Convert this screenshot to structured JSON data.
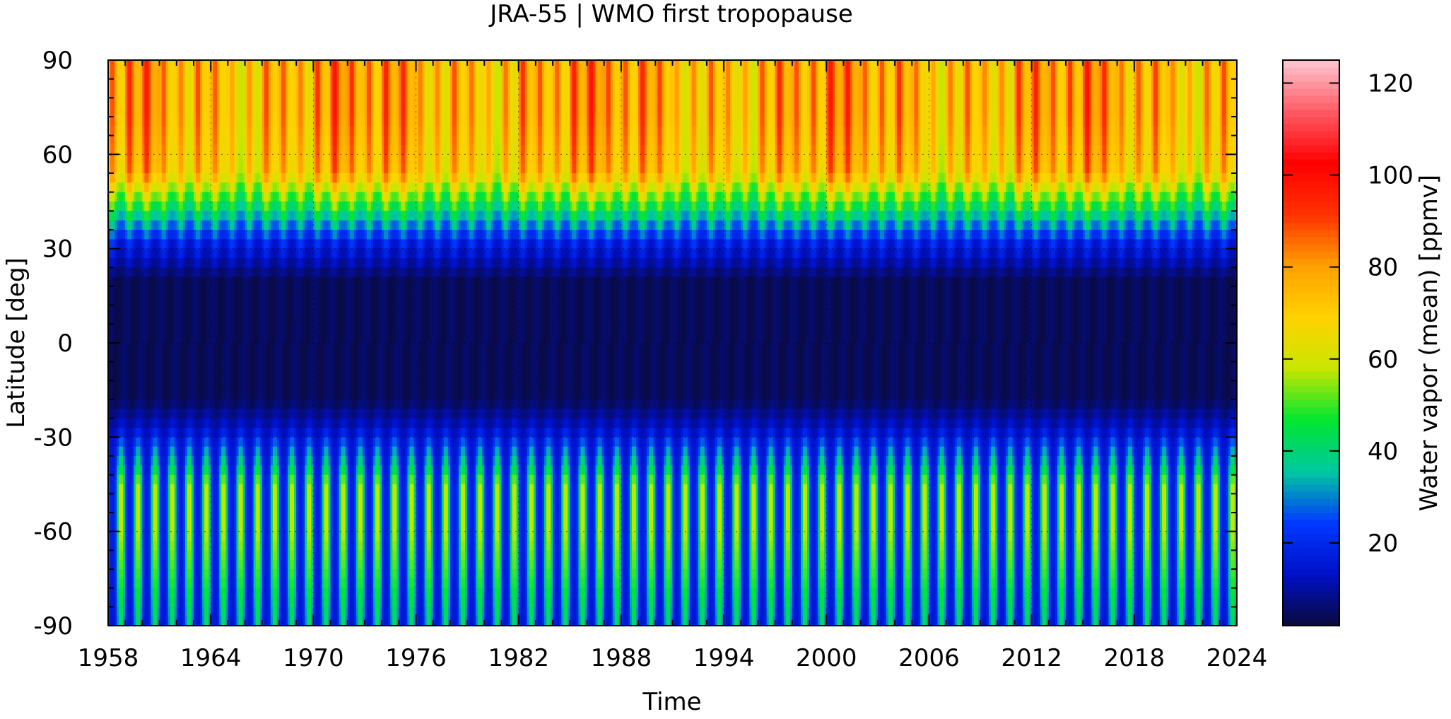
{
  "chart_data": {
    "type": "heatmap",
    "title": "JRA-55 | WMO first tropopause",
    "xlabel": "Time",
    "ylabel": "Latitude [deg]",
    "x_ticks": [
      "1958",
      "1964",
      "1970",
      "1976",
      "1982",
      "1988",
      "1994",
      "2000",
      "2006",
      "2012",
      "2018",
      "2024"
    ],
    "x_range": [
      1958,
      2024
    ],
    "y_ticks": [
      "90",
      "60",
      "30",
      "0",
      "-30",
      "-60",
      "-90"
    ],
    "y_range": [
      -90,
      90
    ],
    "colorbar": {
      "label": "Water vapor (mean) [ppmv]",
      "ticks": [
        "20",
        "40",
        "60",
        "80",
        "100",
        "120"
      ],
      "range": [
        2,
        125
      ],
      "colormap": [
        "#0a0a3a",
        "#0010c8",
        "#0038ff",
        "#00c8a0",
        "#00e632",
        "#c8e600",
        "#ffd200",
        "#ffa000",
        "#ff3200",
        "#ff0000",
        "#ff5a64",
        "#ffc8d2"
      ]
    },
    "seasonal_cycle": {
      "period_years": 1,
      "tropics_ppmv": [
        3,
        6
      ],
      "subtropics_ppmv": [
        10,
        25
      ],
      "north_high_lat_ppmv": [
        30,
        100
      ],
      "south_high_lat_ppmv": [
        10,
        60
      ]
    },
    "grid": true
  }
}
